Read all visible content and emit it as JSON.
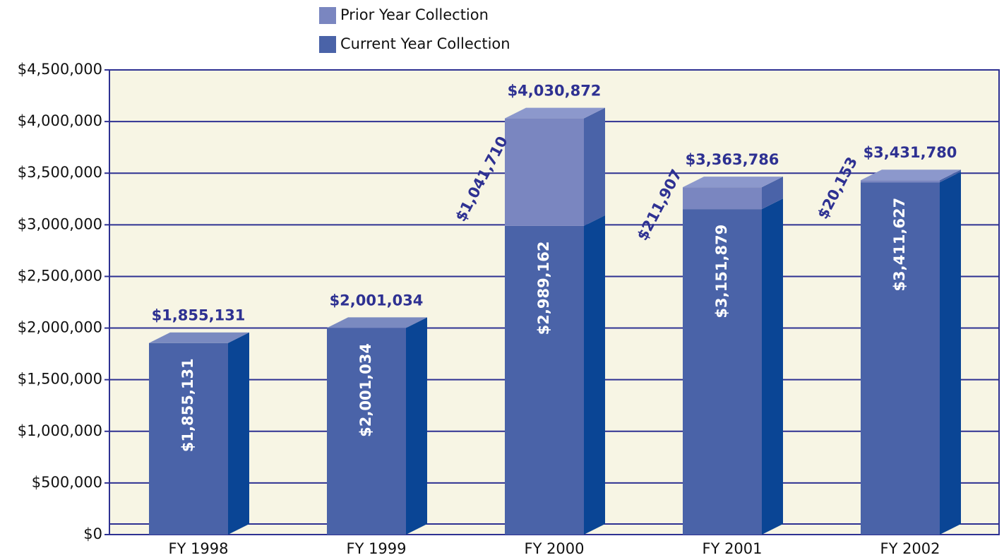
{
  "chart_data": {
    "type": "bar",
    "stacked": true,
    "categories": [
      "FY 1998",
      "FY 1999",
      "FY 2000",
      "FY 2001",
      "FY 2002"
    ],
    "series": [
      {
        "name": "Current Year Collection",
        "color": "#4a63a8",
        "values": [
          1855131,
          2001034,
          2989162,
          3151879,
          3411627
        ],
        "value_labels": [
          "$1,855,131",
          "$2,001,034",
          "$2,989,162",
          "$3,151,879",
          "$3,411,627"
        ]
      },
      {
        "name": "Prior Year Collection",
        "color": "#7a86c0",
        "values": [
          null,
          null,
          1041710,
          211907,
          20153
        ],
        "value_labels": [
          null,
          null,
          "$1,041,710",
          "$211,907",
          "$20,153"
        ]
      }
    ],
    "totals": {
      "values": [
        1855131,
        2001034,
        4030872,
        3363786,
        3431780
      ],
      "value_labels": [
        "$1,855,131",
        "$2,001,034",
        "$4,030,872",
        "$3,363,786",
        "$3,431,780"
      ]
    },
    "ylim": [
      0,
      4500000
    ],
    "yticks": [
      {
        "value": 0,
        "label": "$0"
      },
      {
        "value": 500000,
        "label": "$500,000"
      },
      {
        "value": 1000000,
        "label": "$1,000,000"
      },
      {
        "value": 1500000,
        "label": "$1,500,000"
      },
      {
        "value": 2000000,
        "label": "$2,000,000"
      },
      {
        "value": 2500000,
        "label": "$2,500,000"
      },
      {
        "value": 3000000,
        "label": "$3,000,000"
      },
      {
        "value": 3500000,
        "label": "$3,500,000"
      },
      {
        "value": 4000000,
        "label": "$4,000,000"
      },
      {
        "value": 4500000,
        "label": "$4,500,000"
      }
    ],
    "grid": true
  }
}
